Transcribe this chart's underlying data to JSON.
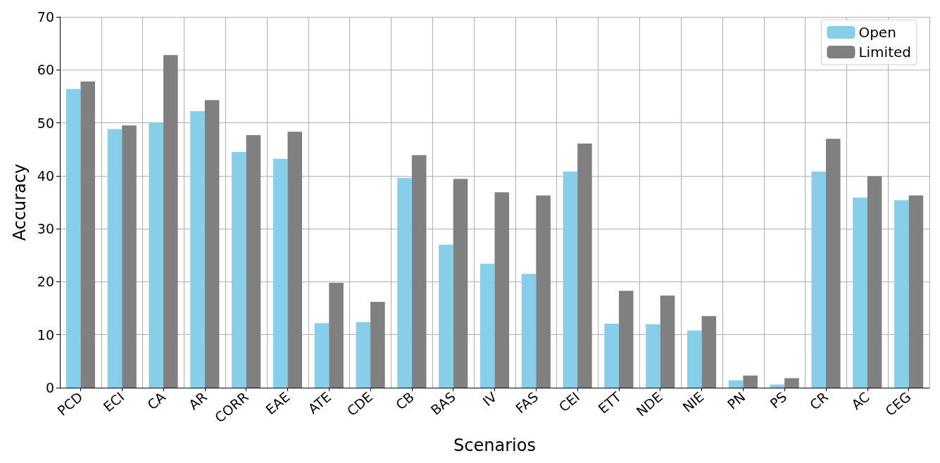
{
  "chart_data": {
    "type": "bar",
    "xlabel": "Scenarios",
    "ylabel": "Accuracy",
    "categories": [
      "PCD",
      "ECI",
      "CA",
      "AR",
      "CORR",
      "EAE",
      "ATE",
      "CDE",
      "CB",
      "BAS",
      "IV",
      "FAS",
      "CEI",
      "ETT",
      "NDE",
      "NIE",
      "PN",
      "PS",
      "CR",
      "AC",
      "CEG"
    ],
    "series": [
      {
        "name": "Open",
        "color": "#87ceeb",
        "values": [
          56.4,
          48.8,
          50.1,
          52.2,
          44.5,
          43.2,
          12.2,
          12.4,
          39.6,
          27.0,
          23.4,
          21.5,
          40.8,
          12.1,
          12.0,
          10.8,
          1.4,
          0.6,
          40.8,
          35.9,
          35.4
        ]
      },
      {
        "name": "Limited",
        "color": "#808080",
        "values": [
          57.8,
          49.5,
          62.8,
          54.3,
          47.7,
          48.3,
          19.8,
          16.2,
          43.9,
          39.4,
          36.9,
          36.3,
          46.1,
          18.3,
          17.4,
          13.5,
          2.3,
          1.8,
          47.0,
          39.9,
          36.3
        ]
      }
    ],
    "ylim": [
      0,
      70
    ],
    "yticks": [
      0,
      10,
      20,
      30,
      40,
      50,
      60,
      70
    ],
    "grid": true,
    "legend": "top right"
  }
}
